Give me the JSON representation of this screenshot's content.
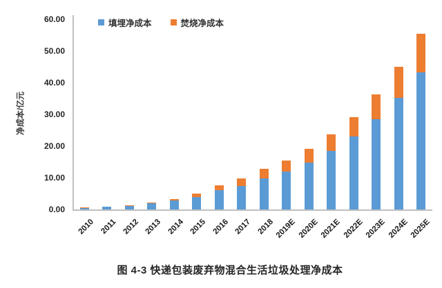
{
  "figure": {
    "caption": "图 4-3 快递包装废弃物混合生活垃圾处理净成本"
  },
  "chart_data": {
    "type": "bar",
    "stacked": true,
    "title": "",
    "xlabel": "",
    "ylabel": "净成本/亿元",
    "ylim": [
      0,
      60
    ],
    "ytick_step": 10,
    "ytick_labels": [
      "0.00",
      "10.00",
      "20.00",
      "30.00",
      "40.00",
      "50.00",
      "60.00"
    ],
    "grid": false,
    "legend_position": "top-center",
    "categories": [
      "2010",
      "2011",
      "2012",
      "2013",
      "2014",
      "2015",
      "2016",
      "2017",
      "2018",
      "2019E",
      "2020E",
      "2021E",
      "2022E",
      "2023E",
      "2024E",
      "2025E"
    ],
    "series": [
      {
        "name": "填埋净成本",
        "color": "#5B9BD5",
        "values": [
          0.5,
          0.8,
          1.2,
          1.9,
          2.8,
          3.9,
          6.0,
          7.5,
          9.7,
          11.9,
          14.9,
          18.4,
          23.0,
          28.4,
          35.2,
          43.3
        ]
      },
      {
        "name": "焚烧净成本",
        "color": "#ED7D31",
        "values": [
          0.1,
          0.15,
          0.2,
          0.35,
          0.5,
          1.1,
          1.7,
          2.2,
          3.1,
          3.6,
          4.3,
          5.4,
          6.1,
          8.0,
          9.9,
          12.1
        ]
      }
    ],
    "totals": [
      0.6,
      0.95,
      1.4,
      2.25,
      3.3,
      5.0,
      7.7,
      9.7,
      12.8,
      15.5,
      19.2,
      23.8,
      29.1,
      36.4,
      45.1,
      55.4
    ],
    "colors": {
      "axis_line": "#BFBFBF",
      "tick_text": "#262626"
    }
  }
}
